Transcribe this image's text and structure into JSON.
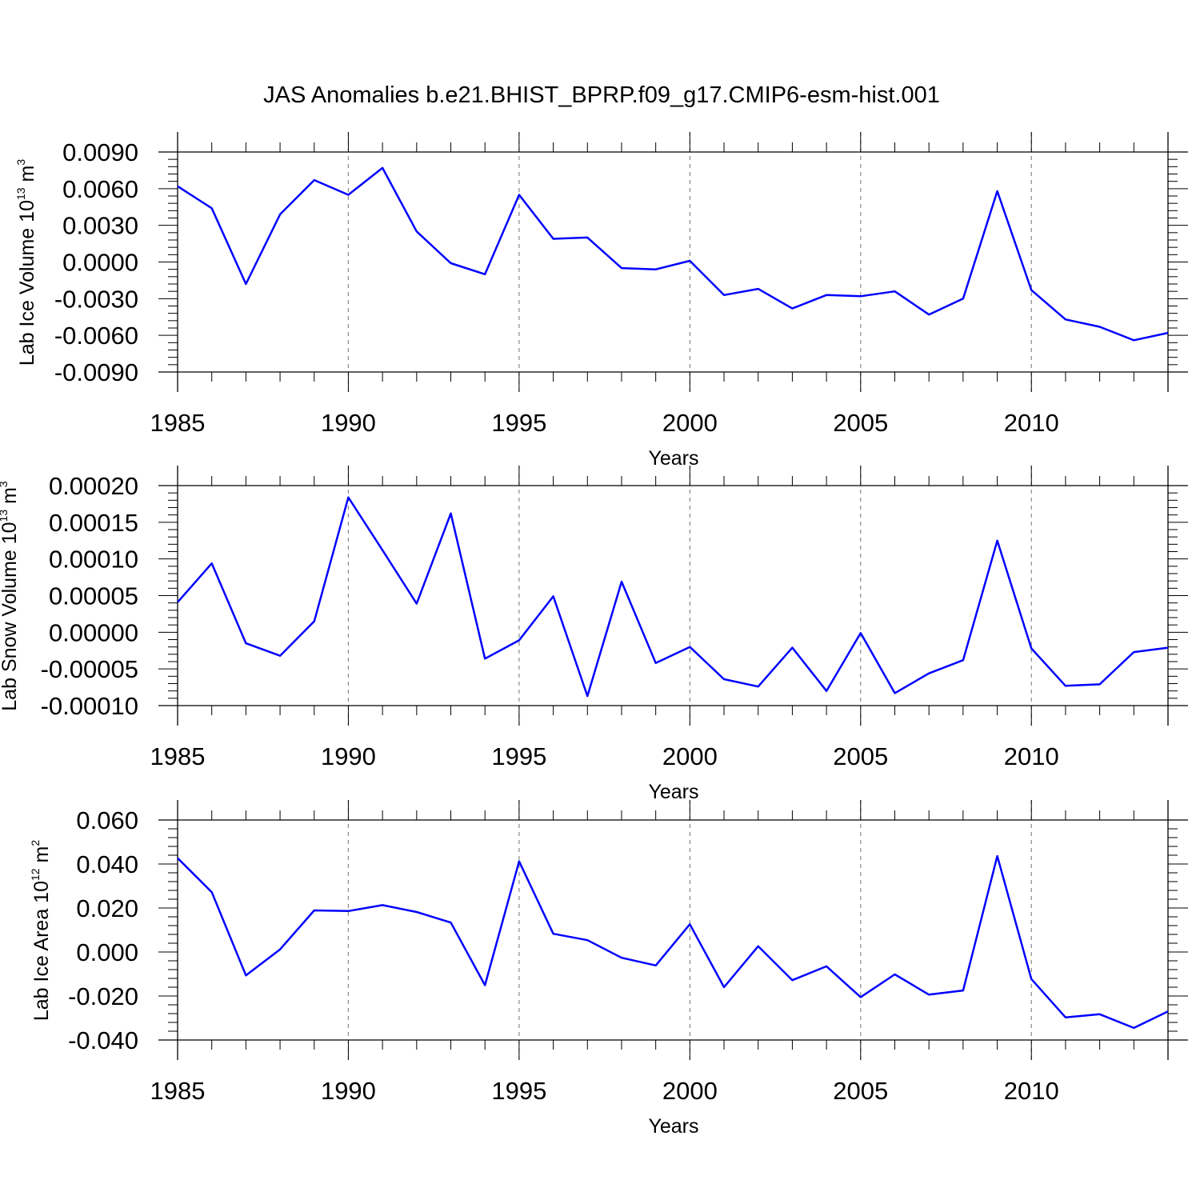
{
  "title": "JAS Anomalies b.e21.BHIST_BPRP.f09_g17.CMIP6-esm-hist.001",
  "line_color": "#0000ff",
  "chart_data": [
    {
      "type": "line",
      "name": "ice-volume",
      "ylabel_main": "Lab Ice Volume 10",
      "ylabel_exp": "13",
      "ylabel_unit": " m",
      "ylabel_unit_exp": "3",
      "xlabel": "Years",
      "xlim": [
        1985,
        2014
      ],
      "ylim": [
        -0.009,
        0.009
      ],
      "yticks": [
        -0.009,
        -0.006,
        -0.003,
        0.0,
        0.003,
        0.006,
        0.009
      ],
      "ytick_labels": [
        "-0.0090",
        "-0.0060",
        "-0.0030",
        "0.0000",
        "0.0030",
        "0.0060",
        "0.0090"
      ],
      "xticks": [
        1985,
        1990,
        1995,
        2000,
        2005,
        2010
      ],
      "xtick_labels": [
        "1985",
        "1990",
        "1995",
        "2000",
        "2005",
        "2010"
      ],
      "x": [
        1985,
        1986,
        1987,
        1988,
        1989,
        1990,
        1991,
        1992,
        1993,
        1994,
        1995,
        1996,
        1997,
        1998,
        1999,
        2000,
        2001,
        2002,
        2003,
        2004,
        2005,
        2006,
        2007,
        2008,
        2009,
        2010,
        2011,
        2012,
        2013,
        2014
      ],
      "values": [
        0.0062,
        0.0044,
        -0.0018,
        0.0039,
        0.0067,
        0.0055,
        0.0077,
        0.0025,
        -0.0001,
        -0.001,
        0.0055,
        0.0019,
        0.002,
        -0.0005,
        -0.0006,
        0.0001,
        -0.0027,
        -0.0022,
        -0.0038,
        -0.0027,
        -0.0028,
        -0.0024,
        -0.0043,
        -0.003,
        0.0058,
        -0.0023,
        -0.0047,
        -0.0053,
        -0.0064,
        -0.0058
      ]
    },
    {
      "type": "line",
      "name": "snow-volume",
      "ylabel_main": "Lab Snow Volume 10",
      "ylabel_exp": "13",
      "ylabel_unit": " m",
      "ylabel_unit_exp": "3",
      "xlabel": "Years",
      "xlim": [
        1985,
        2014
      ],
      "ylim": [
        -0.0001,
        0.0002
      ],
      "yticks": [
        -0.0001,
        -5e-05,
        0.0,
        5e-05,
        0.0001,
        0.00015,
        0.0002
      ],
      "ytick_labels": [
        "-0.00010",
        "-0.00005",
        "0.00000",
        "0.00005",
        "0.00010",
        "0.00015",
        "0.00020"
      ],
      "xticks": [
        1985,
        1990,
        1995,
        2000,
        2005,
        2010
      ],
      "xtick_labels": [
        "1985",
        "1990",
        "1995",
        "2000",
        "2005",
        "2010"
      ],
      "x": [
        1985,
        1986,
        1987,
        1988,
        1989,
        1990,
        1991,
        1992,
        1993,
        1994,
        1995,
        1996,
        1997,
        1998,
        1999,
        2000,
        2001,
        2002,
        2003,
        2004,
        2005,
        2006,
        2007,
        2008,
        2009,
        2010,
        2011,
        2012,
        2013,
        2014
      ],
      "values": [
        4.1e-05,
        9.4e-05,
        -1.5e-05,
        -3.2e-05,
        1.5e-05,
        0.000184,
        0.000112,
        3.9e-05,
        0.000162,
        -3.6e-05,
        -1.1e-05,
        4.9e-05,
        -8.7e-05,
        6.9e-05,
        -4.2e-05,
        -2e-05,
        -6.4e-05,
        -7.4e-05,
        -2.1e-05,
        -8e-05,
        -1e-06,
        -8.3e-05,
        -5.6e-05,
        -3.8e-05,
        0.000125,
        -2.2e-05,
        -7.3e-05,
        -7.1e-05,
        -2.7e-05,
        -2.1e-05
      ]
    },
    {
      "type": "line",
      "name": "ice-area",
      "ylabel_main": "Lab Ice Area 10",
      "ylabel_exp": "12",
      "ylabel_unit": " m",
      "ylabel_unit_exp": "2",
      "xlabel": "Years",
      "xlim": [
        1985,
        2014
      ],
      "ylim": [
        -0.04,
        0.06
      ],
      "yticks": [
        -0.04,
        -0.02,
        0.0,
        0.02,
        0.04,
        0.06
      ],
      "ytick_labels": [
        "-0.040",
        "-0.020",
        "0.000",
        "0.020",
        "0.040",
        "0.060"
      ],
      "xticks": [
        1985,
        1990,
        1995,
        2000,
        2005,
        2010
      ],
      "xtick_labels": [
        "1985",
        "1990",
        "1995",
        "2000",
        "2005",
        "2010"
      ],
      "x": [
        1985,
        1986,
        1987,
        1988,
        1989,
        1990,
        1991,
        1992,
        1993,
        1994,
        1995,
        1996,
        1997,
        1998,
        1999,
        2000,
        2001,
        2002,
        2003,
        2004,
        2005,
        2006,
        2007,
        2008,
        2009,
        2010,
        2011,
        2012,
        2013,
        2014
      ],
      "values": [
        0.0427,
        0.0272,
        -0.0106,
        0.0012,
        0.0189,
        0.0186,
        0.0213,
        0.0182,
        0.0134,
        -0.0151,
        0.0412,
        0.0083,
        0.0054,
        -0.0026,
        -0.0061,
        0.0126,
        -0.016,
        0.0026,
        -0.0128,
        -0.0065,
        -0.0205,
        -0.0102,
        -0.0194,
        -0.0175,
        0.0436,
        -0.0123,
        -0.0297,
        -0.0283,
        -0.0345,
        -0.027
      ]
    }
  ]
}
